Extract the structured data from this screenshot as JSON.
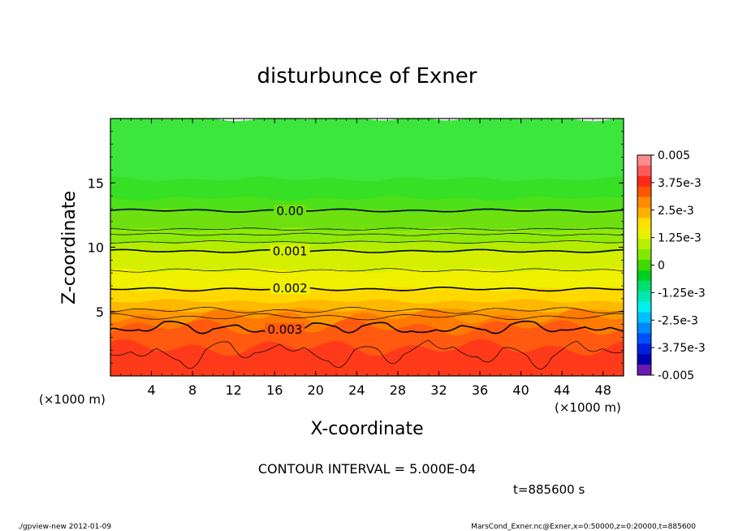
{
  "chart_data": {
    "type": "heatmap",
    "title": "disturbunce of Exner",
    "xlabel": "X-coordinate",
    "ylabel": "Z-coordinate",
    "x_unit": "(×1000 m)",
    "xlim": [
      0,
      50
    ],
    "ylim": [
      0,
      20
    ],
    "x_ticks": [
      4,
      8,
      12,
      16,
      20,
      24,
      28,
      32,
      36,
      40,
      44,
      48
    ],
    "y_ticks": [
      5,
      10,
      15
    ],
    "contour_interval": "CONTOUR INTERVAL = 5.000E-04",
    "time_label": "t=885600 s",
    "contour_labels": [
      {
        "text": "0.00",
        "x": 17.5,
        "z": 12.8
      },
      {
        "text": "0.001",
        "x": 17.5,
        "z": 9.7
      },
      {
        "text": "0.002",
        "x": 17.5,
        "z": 6.8
      },
      {
        "text": "0.003",
        "x": 17.0,
        "z": 3.6
      }
    ],
    "contours": [
      {
        "level": 0.0,
        "z": 12.85,
        "amp": 0.12,
        "major": true
      },
      {
        "level": 0.00025,
        "z": 11.4,
        "amp": 0.1,
        "major": false
      },
      {
        "level": 0.0005,
        "z": 11.0,
        "amp": 0.1,
        "major": false
      },
      {
        "level": 0.00075,
        "z": 10.4,
        "amp": 0.1,
        "major": false
      },
      {
        "level": 0.001,
        "z": 9.7,
        "amp": 0.12,
        "major": true
      },
      {
        "level": 0.0015,
        "z": 8.2,
        "amp": 0.15,
        "major": false
      },
      {
        "level": 0.002,
        "z": 6.75,
        "amp": 0.15,
        "major": true
      },
      {
        "level": 0.0025,
        "z": 5.1,
        "amp": 0.25,
        "major": false
      },
      {
        "level": 0.00275,
        "z": 4.6,
        "amp": 0.25,
        "major": false
      },
      {
        "level": 0.003,
        "z": 3.8,
        "amp": 0.45,
        "major": true
      },
      {
        "level": 0.0035,
        "z": 2.0,
        "amp": 0.9,
        "major": false
      }
    ],
    "colorbar": {
      "labels": [
        "0.005",
        "3.75e-3",
        "2.5e-3",
        "1.25e-3",
        "0",
        "-1.25e-3",
        "-2.5e-3",
        "-3.75e-3",
        "-0.005"
      ],
      "colors": [
        "#ff8c8c",
        "#ff5a5a",
        "#ff2a1a",
        "#ff5500",
        "#ff8a00",
        "#ffb000",
        "#ffe000",
        "#e8f000",
        "#b8f000",
        "#80e800",
        "#40d800",
        "#00d020",
        "#00e070",
        "#00e8b0",
        "#00f0f0",
        "#00c0ff",
        "#0088ff",
        "#0050ff",
        "#0020e0",
        "#0000b0",
        "#6a1ab0"
      ]
    },
    "bands": [
      {
        "z_top": 20.0,
        "color": "#3ce63c"
      },
      {
        "z_top": 15.3,
        "color": "#36e024"
      },
      {
        "z_top": 13.8,
        "color": "#4ee018"
      },
      {
        "z_top": 12.85,
        "color": "#6ee010"
      },
      {
        "z_top": 11.4,
        "color": "#8ee808"
      },
      {
        "z_top": 10.4,
        "color": "#b4ec00"
      },
      {
        "z_top": 9.7,
        "color": "#d4f000"
      },
      {
        "z_top": 8.2,
        "color": "#f0f000"
      },
      {
        "z_top": 6.75,
        "color": "#ffd800"
      },
      {
        "z_top": 5.8,
        "color": "#ffb800"
      },
      {
        "z_top": 5.1,
        "color": "#ff9800"
      },
      {
        "z_top": 4.6,
        "color": "#ff7a00"
      },
      {
        "z_top": 3.8,
        "color": "#ff5a10"
      },
      {
        "z_top": 2.2,
        "color": "#ff3a1a"
      }
    ]
  },
  "footer": {
    "left": "./gpview-new   2012-01-09",
    "right": "MarsCond_Exner.nc@Exner,x=0:50000,z=0:20000,t=885600"
  }
}
